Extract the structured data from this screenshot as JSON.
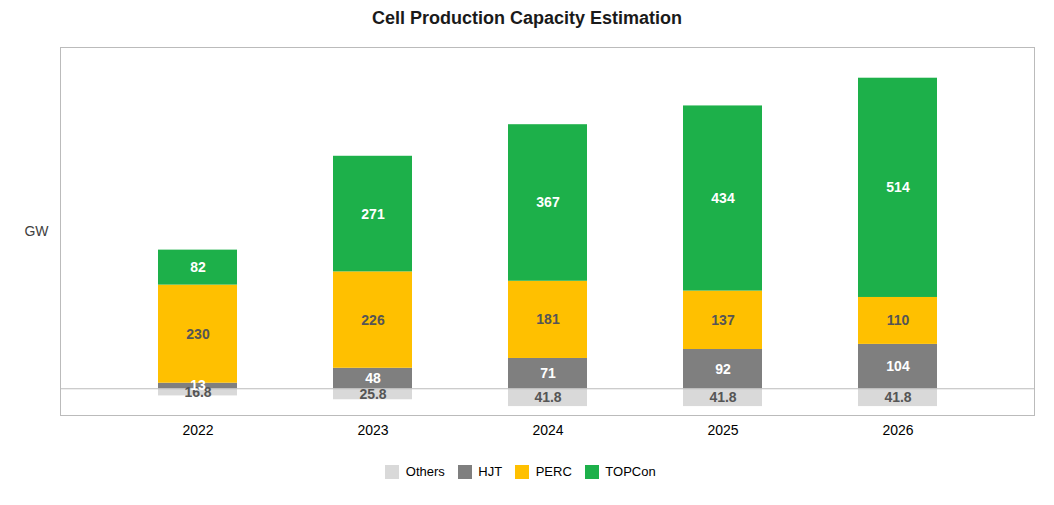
{
  "chart_data": {
    "type": "bar",
    "title": "Cell Production Capacity Estimation",
    "ylabel": "GW",
    "categories": [
      "2022",
      "2023",
      "2024",
      "2025",
      "2026"
    ],
    "series": [
      {
        "name": "Others",
        "color": "#d9d9d9",
        "values": [
          16.8,
          25.8,
          41.8,
          41.8,
          41.8
        ]
      },
      {
        "name": "HJT",
        "color": "#7f7f7f",
        "values": [
          13,
          48,
          71,
          92,
          104
        ]
      },
      {
        "name": "PERC",
        "color": "#ffc000",
        "values": [
          230,
          226,
          181,
          137,
          110
        ]
      },
      {
        "name": "TOPCon",
        "color": "#1db04a",
        "values": [
          82,
          271,
          367,
          434,
          514
        ]
      }
    ],
    "stacked": true,
    "data_labels": true,
    "ylim": [
      -62.7,
      800
    ],
    "tick_labels": "x",
    "grid": false,
    "legend": "bottom"
  }
}
